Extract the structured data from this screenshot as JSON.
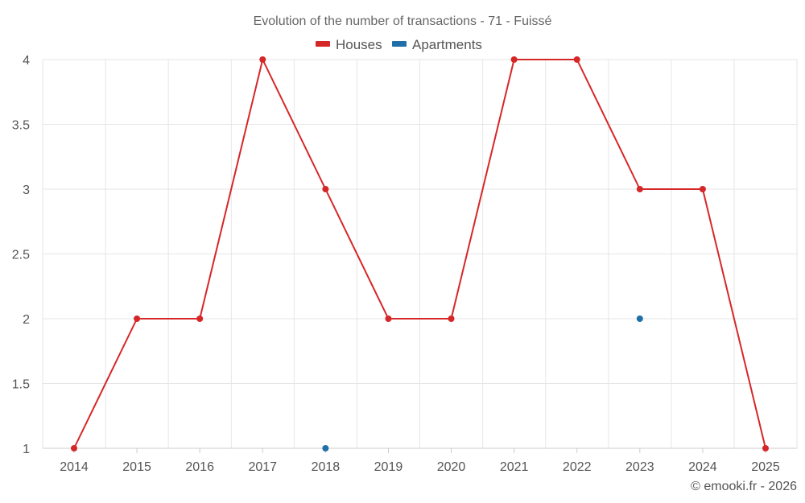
{
  "chart_data": {
    "type": "line",
    "title": "Evolution of the number of transactions - 71 - Fuissé",
    "categories": [
      "2014",
      "2015",
      "2016",
      "2017",
      "2018",
      "2019",
      "2020",
      "2021",
      "2022",
      "2023",
      "2024",
      "2025"
    ],
    "series": [
      {
        "name": "Houses",
        "color": "#d62728",
        "values": [
          1,
          2,
          2,
          4,
          3,
          2,
          2,
          4,
          4,
          3,
          3,
          1
        ]
      },
      {
        "name": "Apartments",
        "color": "#1f6fa8",
        "values": [
          null,
          null,
          null,
          null,
          1,
          null,
          null,
          null,
          null,
          2,
          null,
          null
        ]
      }
    ],
    "ylim": [
      1,
      4
    ],
    "yticks": [
      "1",
      "1.5",
      "2",
      "2.5",
      "3",
      "3.5",
      "4"
    ],
    "xlabel": "",
    "ylabel": "",
    "legend": "top-center",
    "grid": true
  },
  "credit": "© emooki.fr - 2026"
}
